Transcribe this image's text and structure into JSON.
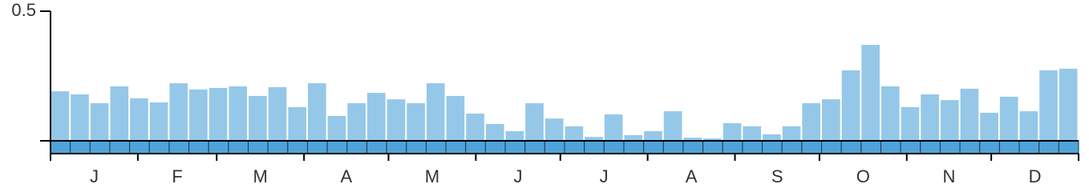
{
  "chart_data": {
    "type": "bar",
    "values": [
      0.191,
      0.179,
      0.145,
      0.21,
      0.164,
      0.148,
      0.222,
      0.198,
      0.204,
      0.21,
      0.173,
      0.207,
      0.13,
      0.222,
      0.096,
      0.145,
      0.185,
      0.16,
      0.145,
      0.222,
      0.173,
      0.105,
      0.065,
      0.037,
      0.145,
      0.086,
      0.056,
      0.015,
      0.102,
      0.022,
      0.037,
      0.114,
      0.012,
      0.009,
      0.068,
      0.056,
      0.025,
      0.056,
      0.145,
      0.16,
      0.272,
      0.37,
      0.21,
      0.13,
      0.179,
      0.157,
      0.201,
      0.108,
      0.17,
      0.114,
      0.272,
      0.278
    ],
    "months": [
      "J",
      "F",
      "M",
      "A",
      "M",
      "J",
      "J",
      "A",
      "S",
      "O",
      "N",
      "D"
    ],
    "color": "#95c8e8",
    "ylim": [
      0,
      0.5
    ],
    "yticks": [
      0.5
    ]
  }
}
